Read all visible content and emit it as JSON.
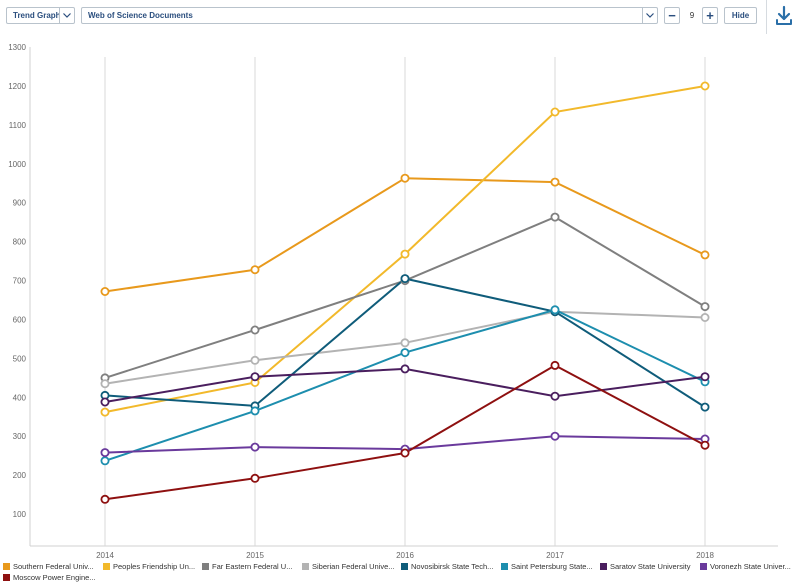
{
  "toolbar": {
    "view_select": "Trend Graph",
    "metric_select": "Web of Science Documents",
    "count": "9",
    "minus_label": "−",
    "plus_label": "+",
    "hide_label": "Hide",
    "download_icon": "download-icon"
  },
  "chart_data": {
    "type": "line",
    "x": [
      "2014",
      "2015",
      "2016",
      "2017",
      "2018"
    ],
    "ylim": [
      100,
      1300
    ],
    "yticks": [
      100,
      200,
      300,
      400,
      500,
      600,
      700,
      800,
      900,
      1000,
      1100,
      1200,
      1300
    ],
    "grid": "vertical",
    "legend_position": "bottom",
    "series": [
      {
        "name": "Southern Federal Univ...",
        "color": "#e8991c",
        "values": [
          672,
          728,
          963,
          953,
          766
        ]
      },
      {
        "name": "Peoples Friendship Un...",
        "color": "#f2b92b",
        "values": [
          362,
          438,
          768,
          1133,
          1200
        ]
      },
      {
        "name": "Far Eastern Federal U...",
        "color": "#7f7f7f",
        "values": [
          450,
          573,
          700,
          863,
          633
        ]
      },
      {
        "name": "Siberian Federal Unive...",
        "color": "#b3b3b3",
        "values": [
          435,
          495,
          540,
          620,
          605
        ]
      },
      {
        "name": "Novosibirsk State Tech...",
        "color": "#0f5c7a",
        "values": [
          405,
          378,
          705,
          620,
          375
        ]
      },
      {
        "name": "Saint Petersburg State...",
        "color": "#1d8eae",
        "values": [
          237,
          365,
          515,
          625,
          440
        ]
      },
      {
        "name": "Saratov State University",
        "color": "#4a1e5e",
        "values": [
          388,
          453,
          473,
          403,
          453
        ]
      },
      {
        "name": "Voronezh State Univer...",
        "color": "#6a3a9c",
        "values": [
          258,
          272,
          267,
          300,
          293
        ]
      },
      {
        "name": "Moscow Power Engine...",
        "color": "#8e1010",
        "values": [
          138,
          192,
          257,
          482,
          277
        ]
      }
    ]
  }
}
